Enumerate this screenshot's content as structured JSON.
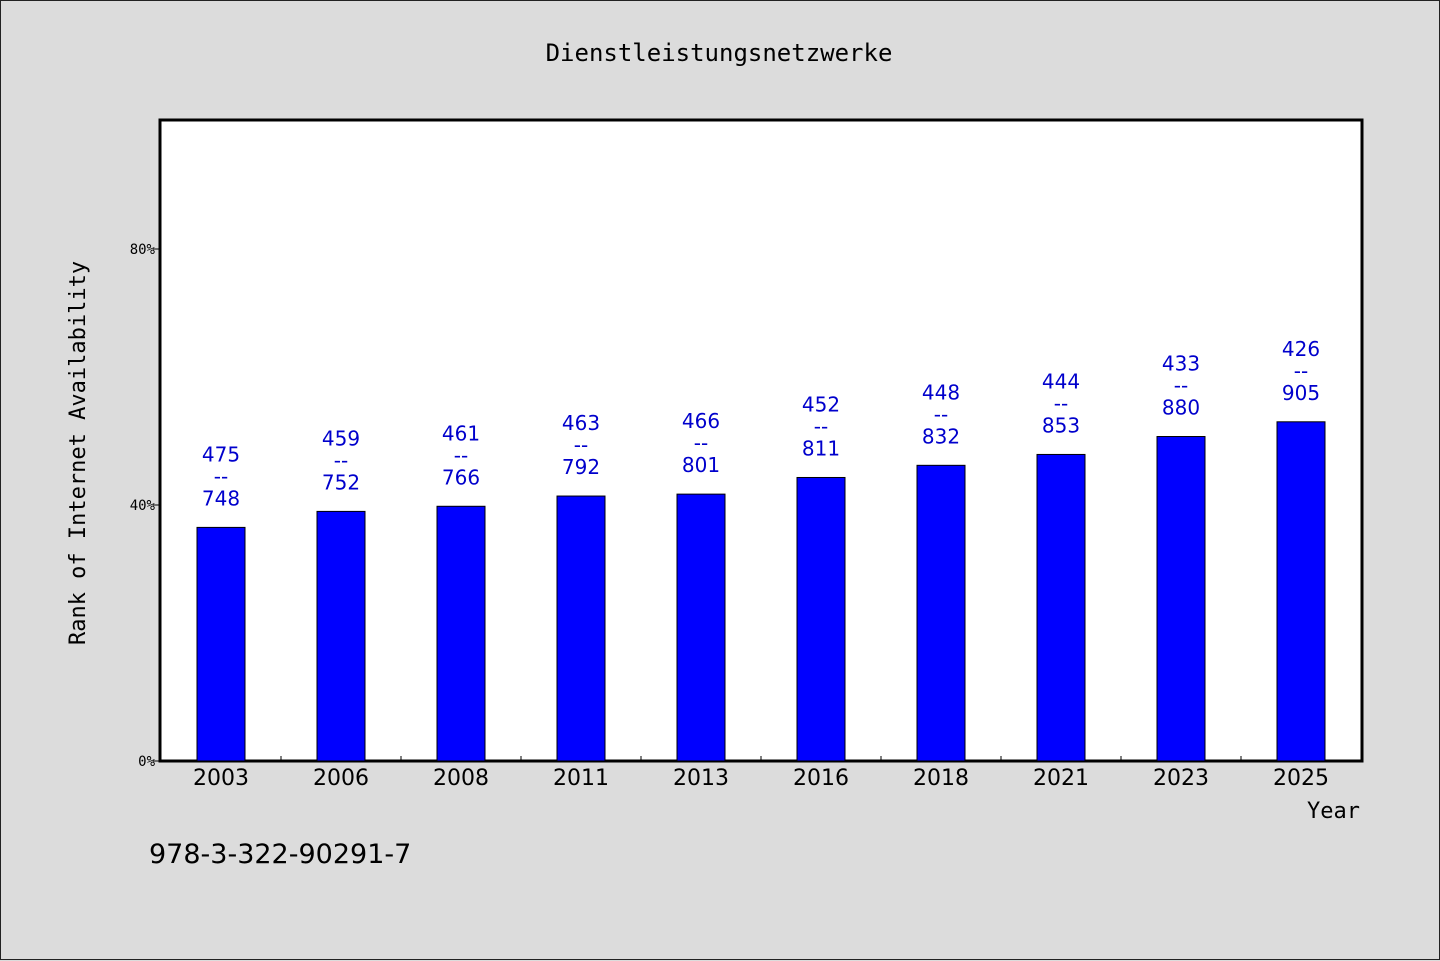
{
  "chart_data": {
    "type": "bar",
    "title": "Dienstleistungsnetzwerke",
    "xlabel": "Year",
    "ylabel": "Rank of Internet Availability",
    "ylim": [
      0,
      100
    ],
    "yticks": [
      "0%",
      "40%",
      "80%"
    ],
    "ytick_values": [
      0,
      40,
      80
    ],
    "categories": [
      "2003",
      "2006",
      "2008",
      "2011",
      "2013",
      "2016",
      "2018",
      "2021",
      "2023",
      "2025"
    ],
    "values": [
      36.5,
      39.0,
      39.8,
      41.4,
      41.7,
      44.3,
      46.2,
      47.9,
      50.7,
      53.0
    ],
    "labels_top": [
      "475",
      "459",
      "461",
      "463",
      "466",
      "452",
      "448",
      "444",
      "433",
      "426"
    ],
    "labels_bottom": [
      "748",
      "752",
      "766",
      "792",
      "801",
      "811",
      "832",
      "853",
      "880",
      "905"
    ],
    "label_separator": "--",
    "bar_color": "#0000ff",
    "label_color": "#0000cc",
    "grid": false
  },
  "footer": {
    "isbn": "978-3-322-90291-7"
  }
}
